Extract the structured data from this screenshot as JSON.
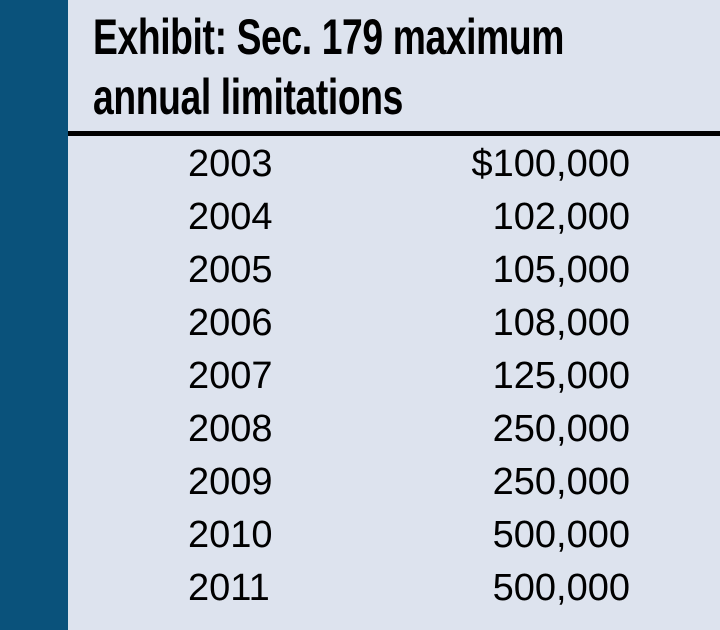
{
  "exhibit": {
    "title_line1": "Exhibit: Sec. 179 maximum",
    "title_line2": "annual limitations"
  },
  "table": {
    "rows": [
      {
        "year": "2003",
        "amount": "$100,000"
      },
      {
        "year": "2004",
        "amount": "102,000"
      },
      {
        "year": "2005",
        "amount": "105,000"
      },
      {
        "year": "2006",
        "amount": "108,000"
      },
      {
        "year": "2007",
        "amount": "125,000"
      },
      {
        "year": "2008",
        "amount": "250,000"
      },
      {
        "year": "2009",
        "amount": "250,000"
      },
      {
        "year": "2010",
        "amount": "500,000"
      },
      {
        "year": "2011",
        "amount": "500,000"
      }
    ]
  },
  "colors": {
    "accent_bar": "#0a527b",
    "panel_background": "#dde3ee",
    "divider": "#000000",
    "text": "#000000"
  },
  "chart_data": {
    "type": "table",
    "title": "Exhibit: Sec. 179 maximum annual limitations",
    "columns": [
      "Year",
      "Maximum annual limitation ($)"
    ],
    "rows": [
      [
        "2003",
        100000
      ],
      [
        "2004",
        102000
      ],
      [
        "2005",
        105000
      ],
      [
        "2006",
        108000
      ],
      [
        "2007",
        125000
      ],
      [
        "2008",
        250000
      ],
      [
        "2009",
        250000
      ],
      [
        "2010",
        500000
      ],
      [
        "2011",
        500000
      ]
    ]
  }
}
